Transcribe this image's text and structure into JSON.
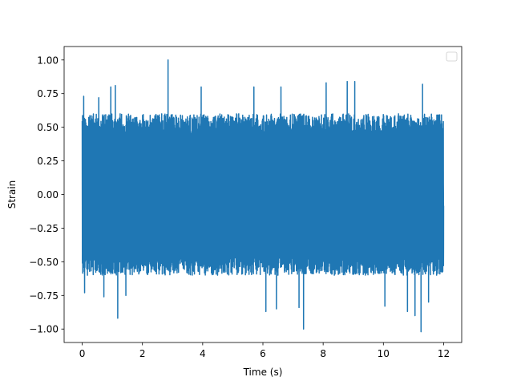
{
  "chart_data": {
    "type": "line",
    "title": "",
    "xlabel": "Time (s)",
    "ylabel": "Strain",
    "xlim": [
      -0.6,
      12.6
    ],
    "ylim": [
      -1.1,
      1.1
    ],
    "x_ticks": [
      0,
      2,
      4,
      6,
      8,
      10,
      12
    ],
    "x_tick_labels": [
      "0",
      "2",
      "4",
      "6",
      "8",
      "10",
      "12"
    ],
    "y_ticks": [
      -1.0,
      -0.75,
      -0.5,
      -0.25,
      0.0,
      0.25,
      0.5,
      0.75,
      1.0
    ],
    "y_tick_labels": [
      "−1.00",
      "−0.75",
      "−0.50",
      "−0.25",
      "0.00",
      "0.25",
      "0.50",
      "0.75",
      "1.00"
    ],
    "grid": false,
    "legend": {
      "placement": "top-right",
      "entries": []
    },
    "series": [
      {
        "color": "#1f77b4",
        "x_range": [
          0,
          12
        ],
        "y_range": [
          -1.02,
          1.0
        ],
        "typical_amplitude": 0.6,
        "peaks": [
          {
            "x": 0.05,
            "y": 0.73
          },
          {
            "x": 0.08,
            "y": -0.73
          },
          {
            "x": 0.55,
            "y": 0.72
          },
          {
            "x": 0.72,
            "y": -0.76
          },
          {
            "x": 0.95,
            "y": 0.8
          },
          {
            "x": 1.1,
            "y": 0.81
          },
          {
            "x": 1.18,
            "y": -0.92
          },
          {
            "x": 1.45,
            "y": -0.75
          },
          {
            "x": 2.85,
            "y": 1.0
          },
          {
            "x": 3.95,
            "y": 0.8
          },
          {
            "x": 5.7,
            "y": 0.8
          },
          {
            "x": 6.1,
            "y": -0.87
          },
          {
            "x": 6.45,
            "y": -0.85
          },
          {
            "x": 6.6,
            "y": 0.8
          },
          {
            "x": 7.2,
            "y": -0.84
          },
          {
            "x": 7.35,
            "y": -1.0
          },
          {
            "x": 8.1,
            "y": 0.83
          },
          {
            "x": 8.8,
            "y": 0.84
          },
          {
            "x": 9.05,
            "y": 0.84
          },
          {
            "x": 10.05,
            "y": -0.83
          },
          {
            "x": 10.8,
            "y": -0.87
          },
          {
            "x": 11.05,
            "y": -0.9
          },
          {
            "x": 11.25,
            "y": -1.02
          },
          {
            "x": 11.3,
            "y": 0.82
          },
          {
            "x": 11.5,
            "y": -0.8
          }
        ]
      }
    ]
  }
}
